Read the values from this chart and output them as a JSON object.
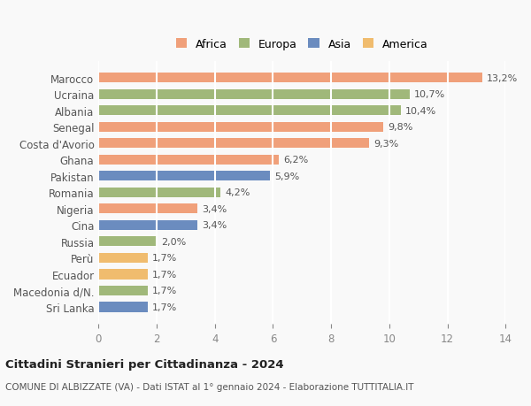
{
  "categories": [
    "Sri Lanka",
    "Macedonia d/N.",
    "Ecuador",
    "Perù",
    "Russia",
    "Cina",
    "Nigeria",
    "Romania",
    "Pakistan",
    "Ghana",
    "Costa d'Avorio",
    "Senegal",
    "Albania",
    "Ucraina",
    "Marocco"
  ],
  "values": [
    1.7,
    1.7,
    1.7,
    1.7,
    2.0,
    3.4,
    3.4,
    4.2,
    5.9,
    6.2,
    9.3,
    9.8,
    10.4,
    10.7,
    13.2
  ],
  "labels": [
    "1,7%",
    "1,7%",
    "1,7%",
    "1,7%",
    "2,0%",
    "3,4%",
    "3,4%",
    "4,2%",
    "5,9%",
    "6,2%",
    "9,3%",
    "9,8%",
    "10,4%",
    "10,7%",
    "13,2%"
  ],
  "colors": [
    "#6b8cbf",
    "#a0b87a",
    "#f0bc6e",
    "#f0bc6e",
    "#a0b87a",
    "#6b8cbf",
    "#f0a07a",
    "#a0b87a",
    "#6b8cbf",
    "#f0a07a",
    "#f0a07a",
    "#f0a07a",
    "#a0b87a",
    "#a0b87a",
    "#f0a07a"
  ],
  "legend_labels": [
    "Africa",
    "Europa",
    "Asia",
    "America"
  ],
  "legend_colors": [
    "#f0a07a",
    "#a0b87a",
    "#6b8cbf",
    "#f0bc6e"
  ],
  "title": "Cittadini Stranieri per Cittadinanza - 2024",
  "subtitle": "COMUNE DI ALBIZZATE (VA) - Dati ISTAT al 1° gennaio 2024 - Elaborazione TUTTITALIA.IT",
  "xlim": [
    0,
    14
  ],
  "xticks": [
    0,
    2,
    4,
    6,
    8,
    10,
    12,
    14
  ],
  "background_color": "#f9f9f9",
  "grid_color": "#ffffff",
  "bar_height": 0.6
}
